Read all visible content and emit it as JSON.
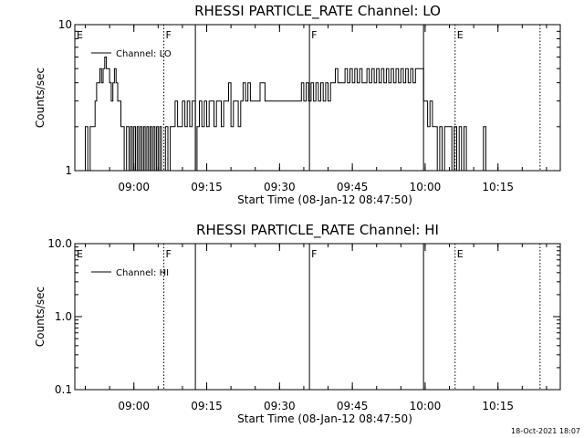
{
  "footer": {
    "timestamp": "18-Oct-2021 18:07"
  },
  "chart_data": [
    {
      "type": "line",
      "title": "RHESSI PARTICLE_RATE Channel: LO",
      "xlabel": "Start Time (08-Jan-12 08:47:50)",
      "ylabel": "Counts/sec",
      "yscale": "log",
      "ylim": [
        1,
        10
      ],
      "ytick_labels": [
        "1",
        "10"
      ],
      "xlim": [
        "08:47:50",
        "10:27:50"
      ],
      "xtick_labels": [
        "09:00",
        "09:15",
        "09:30",
        "09:45",
        "10:00",
        "10:15"
      ],
      "legend": {
        "entries": [
          "Channel: LO"
        ],
        "position": "top-left"
      },
      "markers": [
        {
          "time": "08:47:50",
          "label": "E",
          "style": "solid"
        },
        {
          "time": "09:06:10",
          "label": "F",
          "style": "dotted"
        },
        {
          "time": "09:12:40",
          "label": "",
          "style": "solid"
        },
        {
          "time": "09:36:10",
          "label": "F",
          "style": "solid"
        },
        {
          "time": "09:59:40",
          "label": "",
          "style": "solid"
        },
        {
          "time": "10:06:10",
          "label": "E",
          "style": "dotted"
        },
        {
          "time": "10:23:40",
          "label": "",
          "style": "dotted"
        }
      ],
      "series": [
        {
          "values_time": [
            "08:49:40",
            "08:50:00",
            "08:50:10",
            "08:50:30",
            "08:51:00",
            "08:51:20",
            "08:51:40",
            "08:52:00",
            "08:52:20",
            "08:52:40",
            "08:53:00",
            "08:53:20",
            "08:53:40",
            "08:54:00",
            "08:54:20",
            "08:54:40",
            "08:55:00",
            "08:55:20",
            "08:55:40",
            "08:56:00",
            "08:56:20",
            "08:56:40",
            "08:57:00",
            "08:57:20",
            "08:57:40",
            "08:58:00",
            "08:58:30",
            "08:59:00",
            "08:59:20",
            "08:59:40",
            "09:00:00",
            "09:00:20",
            "09:00:40",
            "09:01:00",
            "09:01:20",
            "09:01:40",
            "09:02:00",
            "09:02:20",
            "09:02:40",
            "09:03:00",
            "09:03:20",
            "09:03:40",
            "09:04:00",
            "09:04:20",
            "09:04:40",
            "09:05:00",
            "09:05:20",
            "09:05:40",
            "09:06:10",
            "09:06:30",
            "09:07:00",
            "09:07:30",
            "09:08:00",
            "09:08:30",
            "09:09:00",
            "09:09:30",
            "09:10:00",
            "09:10:30",
            "09:11:00",
            "09:11:30",
            "09:12:00",
            "09:12:40",
            "09:13:00",
            "09:13:30",
            "09:14:00",
            "09:14:30",
            "09:15:00",
            "09:15:30",
            "09:16:00",
            "09:16:30",
            "09:17:00",
            "09:17:30",
            "09:18:00",
            "09:18:30",
            "09:19:00",
            "09:19:30",
            "09:20:00",
            "09:20:30",
            "09:21:00",
            "09:21:30",
            "09:22:00",
            "09:22:30",
            "09:23:00",
            "09:23:30",
            "09:24:00",
            "09:25:00",
            "09:26:00",
            "09:27:00",
            "09:28:00",
            "09:29:00",
            "09:30:00",
            "09:31:00",
            "09:32:00",
            "09:33:00",
            "09:34:00",
            "09:34:30",
            "09:35:00",
            "09:35:30",
            "09:36:00",
            "09:36:30",
            "09:37:00",
            "09:37:30",
            "09:38:00",
            "09:38:30",
            "09:39:00",
            "09:39:30",
            "09:40:00",
            "09:40:30",
            "09:41:00",
            "09:41:30",
            "09:42:00",
            "09:42:30",
            "09:43:00",
            "09:43:30",
            "09:44:00",
            "09:44:30",
            "09:45:00",
            "09:45:30",
            "09:46:00",
            "09:46:30",
            "09:47:00",
            "09:47:30",
            "09:48:00",
            "09:48:30",
            "09:49:00",
            "09:49:30",
            "09:50:00",
            "09:50:30",
            "09:51:00",
            "09:51:30",
            "09:52:00",
            "09:52:30",
            "09:53:00",
            "09:53:30",
            "09:54:00",
            "09:54:30",
            "09:55:00",
            "09:55:30",
            "09:56:00",
            "09:56:30",
            "09:57:00",
            "09:57:30",
            "09:58:00",
            "09:58:30",
            "09:59:00",
            "09:59:40",
            "10:00:00",
            "10:00:30",
            "10:01:00",
            "10:01:30",
            "10:02:00",
            "10:02:30",
            "10:03:00",
            "10:03:30",
            "10:04:00",
            "10:04:30",
            "10:05:00",
            "10:05:30",
            "10:06:00",
            "10:06:30",
            "10:07:00",
            "10:07:30",
            "10:08:00",
            "10:08:30",
            "10:09:00",
            "10:09:30",
            "10:10:00",
            "10:10:30",
            "10:11:00",
            "10:11:30",
            "10:12:00",
            "10:12:30"
          ],
          "values": [
            1,
            2,
            2,
            1,
            2,
            2,
            2,
            3,
            4,
            4,
            5,
            4,
            5,
            6,
            5,
            5,
            4,
            3,
            4,
            5,
            4,
            3,
            3,
            2,
            2,
            1,
            2,
            1,
            2,
            1,
            2,
            1,
            2,
            1,
            2,
            1,
            2,
            1,
            2,
            1,
            2,
            1,
            2,
            1,
            2,
            1,
            2,
            1,
            1,
            2,
            1,
            2,
            2,
            3,
            2,
            2,
            3,
            2,
            3,
            2,
            3,
            1,
            2,
            3,
            2,
            3,
            2,
            3,
            3,
            2,
            3,
            3,
            2,
            3,
            3,
            4,
            2,
            3,
            3,
            2,
            3,
            4,
            3,
            4,
            3,
            3,
            4,
            3,
            3,
            3,
            3,
            3,
            3,
            3,
            3,
            4,
            3,
            4,
            3,
            4,
            3,
            4,
            3,
            4,
            3,
            4,
            3,
            4,
            4,
            5,
            4,
            4,
            4,
            5,
            4,
            5,
            4,
            5,
            4,
            5,
            4,
            4,
            5,
            4,
            5,
            4,
            5,
            4,
            5,
            4,
            5,
            4,
            5,
            4,
            5,
            4,
            5,
            4,
            5,
            4,
            5,
            4,
            5,
            5,
            5,
            3,
            3,
            2,
            3,
            2,
            2,
            1,
            2,
            1,
            2,
            2,
            2,
            1,
            2,
            1,
            2,
            1,
            2,
            1,
            1,
            1,
            1,
            1,
            1,
            1,
            2,
            1
          ]
        }
      ]
    },
    {
      "type": "line",
      "title": "RHESSI PARTICLE_RATE Channel: HI",
      "xlabel": "Start Time (08-Jan-12 08:47:50)",
      "ylabel": "Counts/sec",
      "yscale": "log",
      "ylim": [
        0.1,
        10
      ],
      "ytick_labels": [
        "0.1",
        "1.0",
        "10.0"
      ],
      "xlim": [
        "08:47:50",
        "10:27:50"
      ],
      "xtick_labels": [
        "09:00",
        "09:15",
        "09:30",
        "09:45",
        "10:00",
        "10:15"
      ],
      "legend": {
        "entries": [
          "Channel: HI"
        ],
        "position": "top-left"
      },
      "markers": [
        {
          "time": "08:47:50",
          "label": "E",
          "style": "solid"
        },
        {
          "time": "09:06:10",
          "label": "F",
          "style": "dotted"
        },
        {
          "time": "09:12:40",
          "label": "",
          "style": "solid"
        },
        {
          "time": "09:36:10",
          "label": "F",
          "style": "solid"
        },
        {
          "time": "09:59:40",
          "label": "",
          "style": "solid"
        },
        {
          "time": "10:06:10",
          "label": "E",
          "style": "dotted"
        },
        {
          "time": "10:23:40",
          "label": "",
          "style": "dotted"
        }
      ],
      "series": [
        {
          "values_time": [],
          "values": []
        }
      ]
    }
  ]
}
